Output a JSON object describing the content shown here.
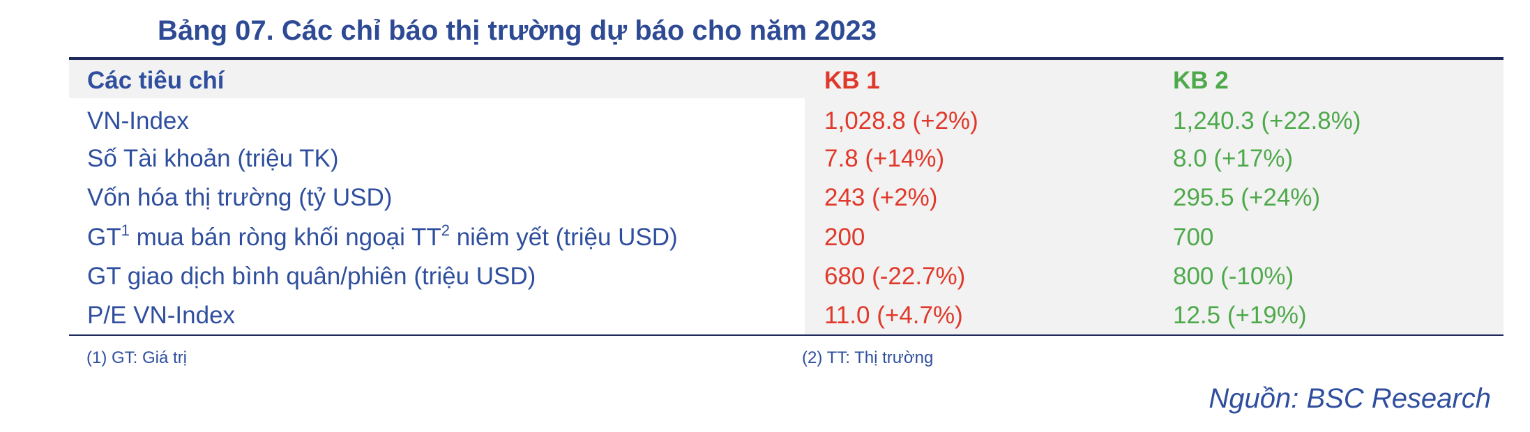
{
  "title": "Bảng 07. Các chỉ báo thị trường dự báo cho năm 2023",
  "table": {
    "header": [
      "Các tiêu chí",
      "KB 1",
      "KB 2"
    ],
    "rows": [
      [
        "VN-Index",
        "1,028.8 (+2%)",
        "1,240.3 (+22.8%)"
      ],
      [
        "Số Tài khoản (triệu TK)",
        "7.8 (+14%)",
        "8.0 (+17%)"
      ],
      [
        "Vốn hóa thị trường (tỷ USD)",
        "243 (+2%)",
        "295.5 (+24%)"
      ],
      [
        [
          "GT",
          "1",
          " mua bán ròng khối ngoại TT",
          "2",
          " niêm yết (triệu USD)"
        ],
        "200",
        "700"
      ],
      [
        "GT giao dịch bình quân/phiên (triệu USD)",
        "680 (-22.7%)",
        "800 (-10%)"
      ],
      [
        "P/E VN-Index",
        "11.0 (+4.7%)",
        "12.5 (+19%)"
      ]
    ]
  },
  "footnotes": [
    "(1) GT: Giá trị",
    "(2) TT: Thị trường"
  ],
  "source": "Nguồn: BSC Research"
}
